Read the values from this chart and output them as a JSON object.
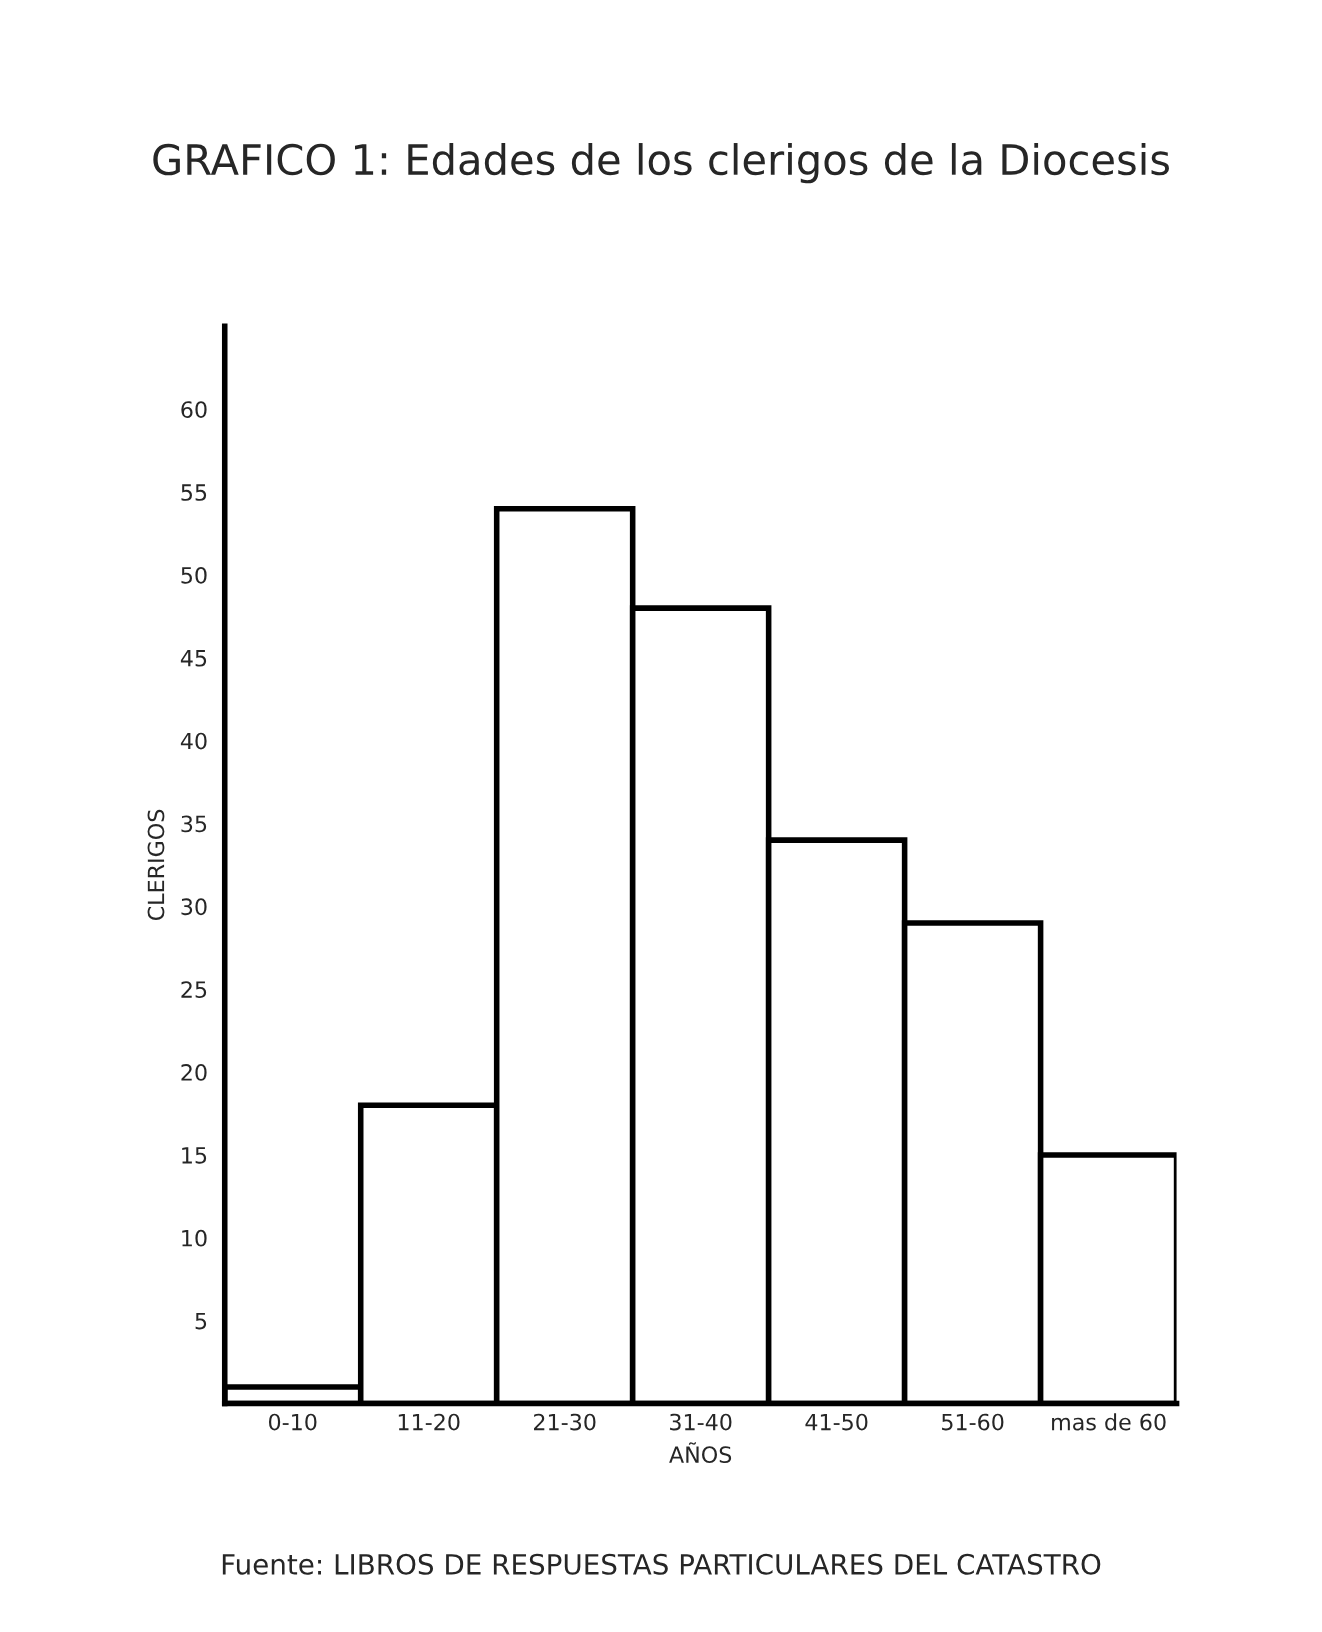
{
  "chart_data": {
    "type": "bar",
    "title": "GRAFICO 1: Edades de los clerigos de la Diocesis",
    "xlabel": "AÑOS",
    "ylabel": "CLERIGOS",
    "categories": [
      "0-10",
      "11-20",
      "21-30",
      "31-40",
      "41-50",
      "51-60",
      "mas de 60"
    ],
    "values": [
      1,
      18,
      54,
      48,
      34,
      29,
      15
    ],
    "color": "#ffffff",
    "ylim": [
      0,
      65
    ],
    "yticks": [
      5,
      10,
      15,
      20,
      25,
      30,
      35,
      40,
      45,
      50,
      55,
      60
    ],
    "grid": false,
    "annotations": [
      "Fuente: LIBROS DE RESPUESTAS PARTICULARES DEL CATASTRO"
    ]
  }
}
